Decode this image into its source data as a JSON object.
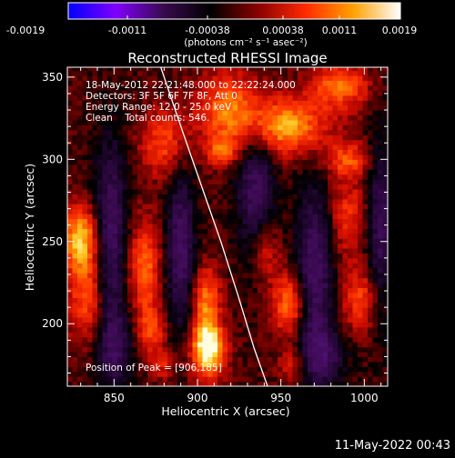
{
  "colorbar": {
    "colors": [
      "#0000ff",
      "#8000ff",
      "#3a0a50",
      "#000000",
      "#8a0000",
      "#ff2a00",
      "#ffa000",
      "#ffffff"
    ],
    "tick_labels": [
      "-0.0019",
      "-0.0011",
      "-0.00038",
      "0.00038",
      "0.0011",
      "0.0019"
    ],
    "unit_label": "(photons cm⁻² s⁻¹ asec⁻²)"
  },
  "chart_data": {
    "type": "heatmap",
    "title": "Reconstructed RHESSI Image",
    "xlabel": "Heliocentric X (arcsec)",
    "ylabel": "Heliocentric Y (arcsec)",
    "xlim": [
      822,
      1014
    ],
    "ylim": [
      162,
      356
    ],
    "x_ticks": [
      850,
      900,
      950,
      1000
    ],
    "y_ticks": [
      200,
      250,
      300,
      350
    ],
    "value_range": [
      -0.0019,
      0.0019
    ],
    "annotations": [
      "18-May-2012 22:21:48.000 to 22:22:24.000",
      "Detectors: 3F 5F 6F 7F 8F, Att 0",
      "Energy Range: 12.0 - 25.0 keV",
      "Clean    Total counts: 546."
    ],
    "peak_label": "Position of Peak = [906,185]",
    "peak": {
      "x": 906,
      "y": 185
    },
    "limb_curve": [
      [
        878,
        356
      ],
      [
        890,
        320
      ],
      [
        902,
        285
      ],
      [
        914,
        250
      ],
      [
        925,
        215
      ],
      [
        934,
        185
      ],
      [
        942,
        162
      ]
    ],
    "sources": [
      {
        "x": 906,
        "y": 185,
        "sx": 7,
        "sy": 12,
        "amp": 1.0
      },
      {
        "x": 905,
        "y": 215,
        "sx": 6,
        "sy": 14,
        "amp": 0.55
      },
      {
        "x": 830,
        "y": 252,
        "sx": 8,
        "sy": 14,
        "amp": 0.75
      },
      {
        "x": 834,
        "y": 215,
        "sx": 8,
        "sy": 18,
        "amp": 0.5
      },
      {
        "x": 868,
        "y": 235,
        "sx": 7,
        "sy": 20,
        "amp": 0.55
      },
      {
        "x": 872,
        "y": 196,
        "sx": 6,
        "sy": 10,
        "amp": 0.45
      },
      {
        "x": 880,
        "y": 310,
        "sx": 10,
        "sy": 14,
        "amp": 0.45
      },
      {
        "x": 920,
        "y": 330,
        "sx": 14,
        "sy": 16,
        "amp": 0.6
      },
      {
        "x": 955,
        "y": 320,
        "sx": 16,
        "sy": 12,
        "amp": 0.7
      },
      {
        "x": 985,
        "y": 345,
        "sx": 12,
        "sy": 10,
        "amp": 0.55
      },
      {
        "x": 955,
        "y": 212,
        "sx": 7,
        "sy": 14,
        "amp": 0.6
      },
      {
        "x": 940,
        "y": 245,
        "sx": 6,
        "sy": 14,
        "amp": 0.4
      },
      {
        "x": 915,
        "y": 305,
        "sx": 6,
        "sy": 6,
        "amp": 0.45
      },
      {
        "x": 990,
        "y": 265,
        "sx": 8,
        "sy": 16,
        "amp": 0.4
      },
      {
        "x": 998,
        "y": 215,
        "sx": 8,
        "sy": 14,
        "amp": 0.45
      },
      {
        "x": 958,
        "y": 175,
        "sx": 6,
        "sy": 8,
        "amp": 0.35
      },
      {
        "x": 990,
        "y": 300,
        "sx": 10,
        "sy": 8,
        "amp": 0.45
      },
      {
        "x": 880,
        "y": 175,
        "sx": 5,
        "sy": 6,
        "amp": 0.3
      }
    ],
    "sinks": [
      {
        "x": 848,
        "y": 255,
        "sx": 7,
        "sy": 40,
        "amp": 0.6
      },
      {
        "x": 890,
        "y": 245,
        "sx": 6,
        "sy": 35,
        "amp": 0.6
      },
      {
        "x": 935,
        "y": 280,
        "sx": 8,
        "sy": 30,
        "amp": 0.55
      },
      {
        "x": 970,
        "y": 230,
        "sx": 8,
        "sy": 40,
        "amp": 0.6
      },
      {
        "x": 1010,
        "y": 260,
        "sx": 6,
        "sy": 40,
        "amp": 0.5
      },
      {
        "x": 850,
        "y": 185,
        "sx": 8,
        "sy": 18,
        "amp": 0.45
      },
      {
        "x": 975,
        "y": 180,
        "sx": 10,
        "sy": 12,
        "amp": 0.45
      }
    ]
  },
  "footer": {
    "timestamp": "11-May-2022 00:43"
  }
}
